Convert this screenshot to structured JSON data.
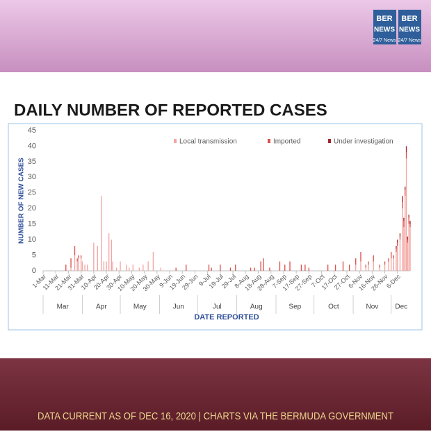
{
  "header": {
    "logo": [
      "BER",
      "NEWS",
      "24/7 News"
    ]
  },
  "footer": "DATA CURRENT AS OF DEC 16, 2020 | CHARTS VIA THE BERMUDA GOVERNMENT",
  "chart_data": {
    "type": "bar",
    "stacked": true,
    "title": "DAILY NUMBER OF REPORTED CASES",
    "y_label": "NUMBER OF NEW CASES",
    "x_label": "DATE REPORTED",
    "months": [
      "Mar",
      "Apr",
      "May",
      "Jun",
      "Jul",
      "Aug",
      "Sep",
      "Oct",
      "Nov",
      "Dec"
    ],
    "xlim": [
      "1-Mar",
      "16-Dec"
    ],
    "xticks": [
      "1-Mar",
      "11-Mar",
      "21-Mar",
      "31-Mar",
      "10-Apr",
      "20-Apr",
      "30-Apr",
      "10-May",
      "20-May",
      "30-May",
      "9-Jun",
      "19-Jun",
      "29-Jun",
      "9-Jul",
      "19-Jul",
      "29-Jul",
      "8-Aug",
      "18-Aug",
      "28-Aug",
      "7-Sep",
      "17-Sep",
      "27-Sep",
      "7-Oct",
      "17-Oct",
      "27-Oct",
      "6-Nov",
      "16-Nov",
      "26-Nov",
      "6-Dec"
    ],
    "ylim": [
      0,
      45
    ],
    "yticks": [
      0,
      5,
      10,
      15,
      20,
      25,
      30,
      35,
      40,
      45
    ],
    "legend": "top-right",
    "x": [
      "19-Mar",
      "23-Mar",
      "26-Mar",
      "28-Mar",
      "29-Mar",
      "31-Mar",
      "1-Apr",
      "3-Apr",
      "5-Apr",
      "10-Apr",
      "13-Apr",
      "16-Apr",
      "18-Apr",
      "20-Apr",
      "22-Apr",
      "24-Apr",
      "25-Apr",
      "28-Apr",
      "1-May",
      "6-May",
      "8-May",
      "11-May",
      "16-May",
      "19-May",
      "23-May",
      "27-May",
      "2-Jun",
      "14-Jun",
      "22-Jun",
      "10-Jul",
      "12-Jul",
      "19-Jul",
      "27-Jul",
      "31-Jul",
      "12-Aug",
      "15-Aug",
      "20-Aug",
      "22-Aug",
      "27-Aug",
      "4-Sep",
      "8-Sep",
      "12-Sep",
      "21-Sep",
      "24-Sep",
      "27-Sep",
      "12-Oct",
      "18-Oct",
      "24-Oct",
      "29-Oct",
      "3-Nov",
      "7-Nov",
      "11-Nov",
      "13-Nov",
      "17-Nov",
      "22-Nov",
      "26-Nov",
      "29-Nov",
      "1-Dec",
      "3-Dec",
      "5-Dec",
      "6-Dec",
      "8-Dec",
      "10-Dec",
      "11-Dec",
      "12-Dec",
      "13-Dec",
      "14-Dec",
      "15-Dec",
      "16-Dec"
    ],
    "series": [
      {
        "name": "Local transmission",
        "color": "#f2a7a4",
        "values": [
          0,
          1,
          5,
          3,
          4,
          4,
          3,
          2,
          2,
          9,
          8,
          24,
          3,
          3,
          12,
          10,
          3,
          1,
          3,
          2,
          1,
          2,
          1,
          2,
          3,
          6,
          1,
          0,
          0,
          0,
          0,
          0,
          0,
          0,
          0,
          0,
          0,
          0,
          0,
          0,
          0,
          0,
          0,
          0,
          0,
          0,
          0,
          0,
          0,
          2,
          3,
          1,
          2,
          3,
          1,
          2,
          3,
          4,
          4,
          6,
          8,
          10,
          20,
          14,
          24,
          36,
          9,
          15,
          14
        ]
      },
      {
        "name": "Imported",
        "color": "#d9534f",
        "values": [
          2,
          3,
          3,
          1,
          1,
          1,
          0,
          0,
          0,
          0,
          0,
          0,
          0,
          0,
          0,
          0,
          0,
          0,
          0,
          0,
          0,
          0,
          0,
          0,
          0,
          0,
          0,
          1,
          2,
          2,
          1,
          2,
          1,
          2,
          1,
          1,
          3,
          4,
          1,
          3,
          2,
          3,
          2,
          2,
          1,
          2,
          2,
          3,
          2,
          2,
          3,
          1,
          1,
          2,
          1,
          1,
          1,
          2,
          1,
          1,
          1,
          1,
          2,
          2,
          2,
          2,
          1,
          2,
          1
        ]
      },
      {
        "name": "Under investigation",
        "color": "#a3282b",
        "values": [
          0,
          0,
          0,
          0,
          0,
          0,
          0,
          0,
          0,
          0,
          0,
          0,
          0,
          0,
          0,
          0,
          0,
          0,
          0,
          0,
          0,
          0,
          0,
          0,
          0,
          0,
          0,
          0,
          0,
          0,
          0,
          0,
          0,
          0,
          0,
          0,
          0,
          0,
          0,
          0,
          0,
          0,
          0,
          0,
          0,
          0,
          0,
          0,
          0,
          0,
          0,
          0,
          0,
          0,
          0,
          0,
          0,
          0,
          0,
          1,
          1,
          1,
          2,
          1,
          1,
          2,
          1,
          1,
          1
        ]
      }
    ]
  }
}
